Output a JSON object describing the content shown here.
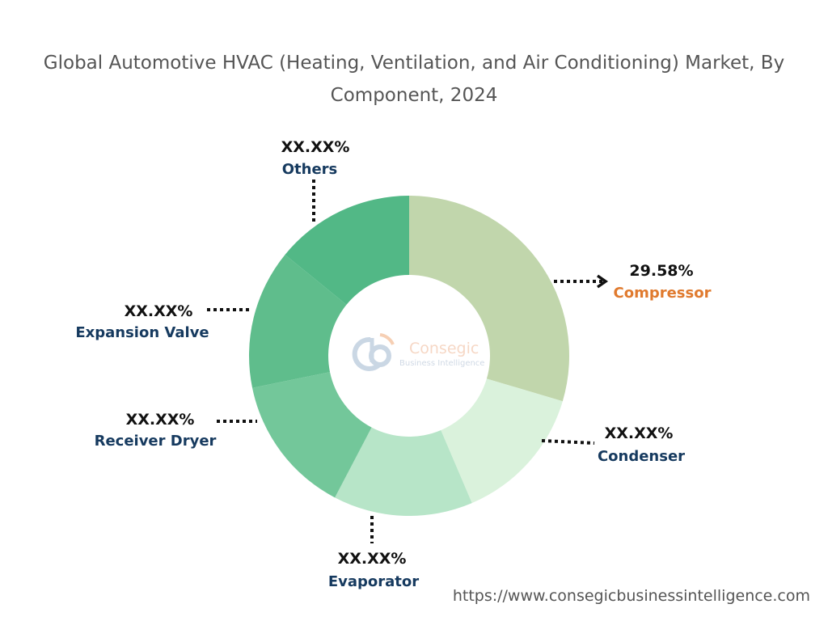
{
  "chart_data": {
    "type": "pie",
    "donut": true,
    "title": "Global Automotive HVAC (Heating, Ventilation, and Air Conditioning) Market, By Component, 2024",
    "slices": [
      {
        "name": "Compressor",
        "label": "29.58%",
        "value": 29.58,
        "color": "#c1d6ac",
        "label_color": "#e07a2e"
      },
      {
        "name": "Condenser",
        "label": "XX.XX%",
        "value": 14.0,
        "color": "#daf2dc",
        "label_color": "#163a5f"
      },
      {
        "name": "Evaporator",
        "label": "XX.XX%",
        "value": 14.1,
        "color": "#b7e5c8",
        "label_color": "#163a5f"
      },
      {
        "name": "Receiver Dryer",
        "label": "XX.XX%",
        "value": 14.1,
        "color": "#73c79a",
        "label_color": "#163a5f"
      },
      {
        "name": "Expansion Valve",
        "label": "XX.XX%",
        "value": 14.1,
        "color": "#5fbd8c",
        "label_color": "#163a5f"
      },
      {
        "name": "Others",
        "label": "XX.XX%",
        "value": 14.12,
        "color": "#52b886",
        "label_color": "#163a5f"
      }
    ],
    "legend": "none"
  },
  "watermark": {
    "brand": "Consegic",
    "tagline": "Business Intelligence"
  },
  "footer": {
    "url": "https://www.consegicbusinessintelligence.com"
  }
}
